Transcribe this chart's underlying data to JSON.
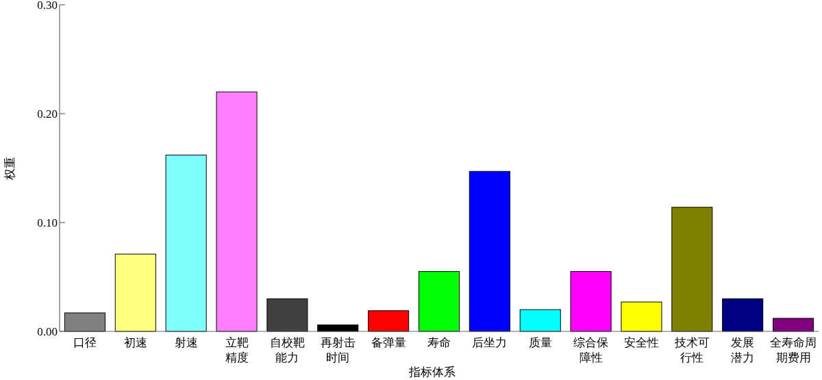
{
  "chart_data": {
    "type": "bar",
    "xlabel": "指标体系",
    "ylabel": "权重",
    "categories": [
      "口径",
      "初速",
      "射速",
      "立靶精度",
      "自校靶能力",
      "再射击时间",
      "备弹量",
      "寿命",
      "后坐力",
      "质量",
      "综合保障性",
      "安全性",
      "技术可行性",
      "发展潜力",
      "全寿命周期费用"
    ],
    "values": [
      0.017,
      0.071,
      0.162,
      0.22,
      0.03,
      0.006,
      0.019,
      0.055,
      0.147,
      0.02,
      0.055,
      0.027,
      0.114,
      0.03,
      0.012
    ],
    "colors": [
      "#808080",
      "#ffff80",
      "#80ffff",
      "#ff80ff",
      "#404040",
      "#000000",
      "#ff0000",
      "#00ff00",
      "#0000ff",
      "#00ffff",
      "#ff00ff",
      "#ffff00",
      "#808000",
      "#000080",
      "#800080"
    ],
    "ylim": [
      0,
      0.3
    ],
    "yticks": [
      {
        "value": 0,
        "label": "0.00"
      },
      {
        "value": 0.1,
        "label": "0.10"
      },
      {
        "value": 0.2,
        "label": "0.20"
      },
      {
        "value": 0.3,
        "label": "0.30"
      }
    ],
    "grid": false
  }
}
